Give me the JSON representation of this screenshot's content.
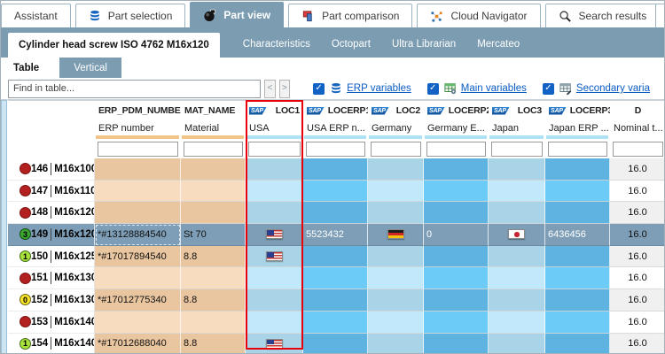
{
  "colors": {
    "accent_steel_blue": "#7b9cb1",
    "selected_row": "#7d9eb6",
    "highlight_red": "#e8000a",
    "tan_dark": "#e9c6a0",
    "tan_light": "#f7dcc0",
    "loc_dark": "#a9d3e7",
    "loc_light": "#c2e9fb",
    "erp_dark": "#5fb3e0",
    "erp_light": "#6dcbf8",
    "link_blue": "#0b5bc4",
    "bar_orange": "#f3c488",
    "bar_blue": "#aee0f6"
  },
  "top_tabs": [
    {
      "label": "Assistant",
      "icon": "",
      "active": false
    },
    {
      "label": "Part selection",
      "icon": "database-icon",
      "active": false
    },
    {
      "label": "Part view",
      "icon": "part-3d-icon",
      "active": true
    },
    {
      "label": "Part comparison",
      "icon": "flag-compare-icon",
      "active": false
    },
    {
      "label": "Cloud Navigator",
      "icon": "network-icon",
      "active": false
    },
    {
      "label": "Search results",
      "icon": "search-icon",
      "active": false
    }
  ],
  "document_tabs": {
    "active": "Cylinder head screw ISO 4762 M16x120",
    "items": [
      "Cylinder head screw ISO 4762 M16x120",
      "Characteristics",
      "Octopart",
      "Ultra Librarian",
      "Mercateo"
    ]
  },
  "view_tabs": [
    {
      "label": "Table",
      "active": true
    },
    {
      "label": "Vertical",
      "active": false
    }
  ],
  "find_bar": {
    "placeholder": "Find in table...",
    "prev_label": "<",
    "next_label": ">",
    "toggles": [
      {
        "label": "ERP variables",
        "checked": true,
        "icon": "database-icon"
      },
      {
        "label": "Main variables",
        "checked": true,
        "icon": "main-table-icon"
      },
      {
        "label": "Secondary varia",
        "checked": true,
        "icon": "secondary-table-icon"
      }
    ]
  },
  "sap_logo_text": "SAP",
  "check_glyph": "✓",
  "table": {
    "columns": [
      {
        "name": "",
        "subtitle": "",
        "type": "rowheader",
        "sap": false,
        "bar": "none"
      },
      {
        "name": "ERP_PDM_NUMBER",
        "subtitle": "ERP number",
        "type": "tan",
        "sap": false,
        "bar": "#f3c488"
      },
      {
        "name": "MAT_NAME",
        "subtitle": "Material",
        "type": "tan",
        "sap": false,
        "bar": "#f3c488"
      },
      {
        "name": "LOC1",
        "subtitle": "USA",
        "type": "loc",
        "sap": true,
        "bar": "#aee0f6",
        "highlighted": true
      },
      {
        "name": "LOCERP1",
        "subtitle": "USA ERP n...",
        "type": "erp",
        "sap": true,
        "bar": "#aee0f6"
      },
      {
        "name": "LOC2",
        "subtitle": "Germany",
        "type": "loc",
        "sap": true,
        "bar": "#aee0f6"
      },
      {
        "name": "LOCERP2",
        "subtitle": "Germany E...",
        "type": "erp",
        "sap": true,
        "bar": "#aee0f6"
      },
      {
        "name": "LOC3",
        "subtitle": "Japan",
        "type": "loc",
        "sap": true,
        "bar": "#aee0f6"
      },
      {
        "name": "LOCERP3",
        "subtitle": "Japan ERP ...",
        "type": "erp",
        "sap": true,
        "bar": "#aee0f6"
      },
      {
        "name": "D",
        "subtitle": "Nominal t...",
        "type": "d",
        "sap": false,
        "bar": "none"
      }
    ],
    "rows": [
      {
        "num": "146",
        "status": "red",
        "badge": "",
        "name": "M16x100",
        "selected": false,
        "cells": {
          "ERP_PDM_NUMBER": "",
          "MAT_NAME": "",
          "LOC1": "",
          "LOCERP1": "",
          "LOC2": "",
          "LOCERP2": "",
          "LOC3": "",
          "LOCERP3": "",
          "D": "16.0"
        }
      },
      {
        "num": "147",
        "status": "red",
        "badge": "",
        "name": "M16x110",
        "selected": false,
        "cells": {
          "ERP_PDM_NUMBER": "",
          "MAT_NAME": "",
          "LOC1": "",
          "LOCERP1": "",
          "LOC2": "",
          "LOCERP2": "",
          "LOC3": "",
          "LOCERP3": "",
          "D": "16.0"
        }
      },
      {
        "num": "148",
        "status": "red",
        "badge": "",
        "name": "M16x120",
        "selected": false,
        "cells": {
          "ERP_PDM_NUMBER": "",
          "MAT_NAME": "",
          "LOC1": "",
          "LOCERP1": "",
          "LOC2": "",
          "LOCERP2": "",
          "LOC3": "",
          "LOCERP3": "",
          "D": "16.0"
        }
      },
      {
        "num": "149",
        "status": "green",
        "badge": "3",
        "name": "M16x120",
        "selected": true,
        "cells": {
          "ERP_PDM_NUMBER": "*#13128884540",
          "MAT_NAME": "St 70",
          "LOC1": "flag:us",
          "LOCERP1": "5523432",
          "LOC2": "flag:de",
          "LOCERP2": "0",
          "LOC3": "flag:jp",
          "LOCERP3": "6436456",
          "D": "16.0"
        }
      },
      {
        "num": "150",
        "status": "lightgreen",
        "badge": "1",
        "name": "M16x125",
        "selected": false,
        "cells": {
          "ERP_PDM_NUMBER": "*#17017894540",
          "MAT_NAME": "8.8",
          "LOC1": "flag:us",
          "LOCERP1": "",
          "LOC2": "",
          "LOCERP2": "",
          "LOC3": "",
          "LOCERP3": "",
          "D": "16.0"
        }
      },
      {
        "num": "151",
        "status": "red",
        "badge": "",
        "name": "M16x130",
        "selected": false,
        "cells": {
          "ERP_PDM_NUMBER": "",
          "MAT_NAME": "",
          "LOC1": "",
          "LOCERP1": "",
          "LOC2": "",
          "LOCERP2": "",
          "LOC3": "",
          "LOCERP3": "",
          "D": "16.0"
        }
      },
      {
        "num": "152",
        "status": "yellow",
        "badge": "0",
        "name": "M16x130",
        "selected": false,
        "cells": {
          "ERP_PDM_NUMBER": "*#17012775340",
          "MAT_NAME": "8.8",
          "LOC1": "",
          "LOCERP1": "",
          "LOC2": "",
          "LOCERP2": "",
          "LOC3": "",
          "LOCERP3": "",
          "D": "16.0"
        }
      },
      {
        "num": "153",
        "status": "red",
        "badge": "",
        "name": "M16x140",
        "selected": false,
        "cells": {
          "ERP_PDM_NUMBER": "",
          "MAT_NAME": "",
          "LOC1": "",
          "LOCERP1": "",
          "LOC2": "",
          "LOCERP2": "",
          "LOC3": "",
          "LOCERP3": "",
          "D": "16.0"
        }
      },
      {
        "num": "154",
        "status": "lightgreen",
        "badge": "1",
        "name": "M16x140",
        "selected": false,
        "cells": {
          "ERP_PDM_NUMBER": "*#17012688040",
          "MAT_NAME": "8.8",
          "LOC1": "flag:us",
          "LOCERP1": "",
          "LOC2": "",
          "LOCERP2": "",
          "LOC3": "",
          "LOCERP3": "",
          "D": "16.0"
        }
      }
    ]
  }
}
